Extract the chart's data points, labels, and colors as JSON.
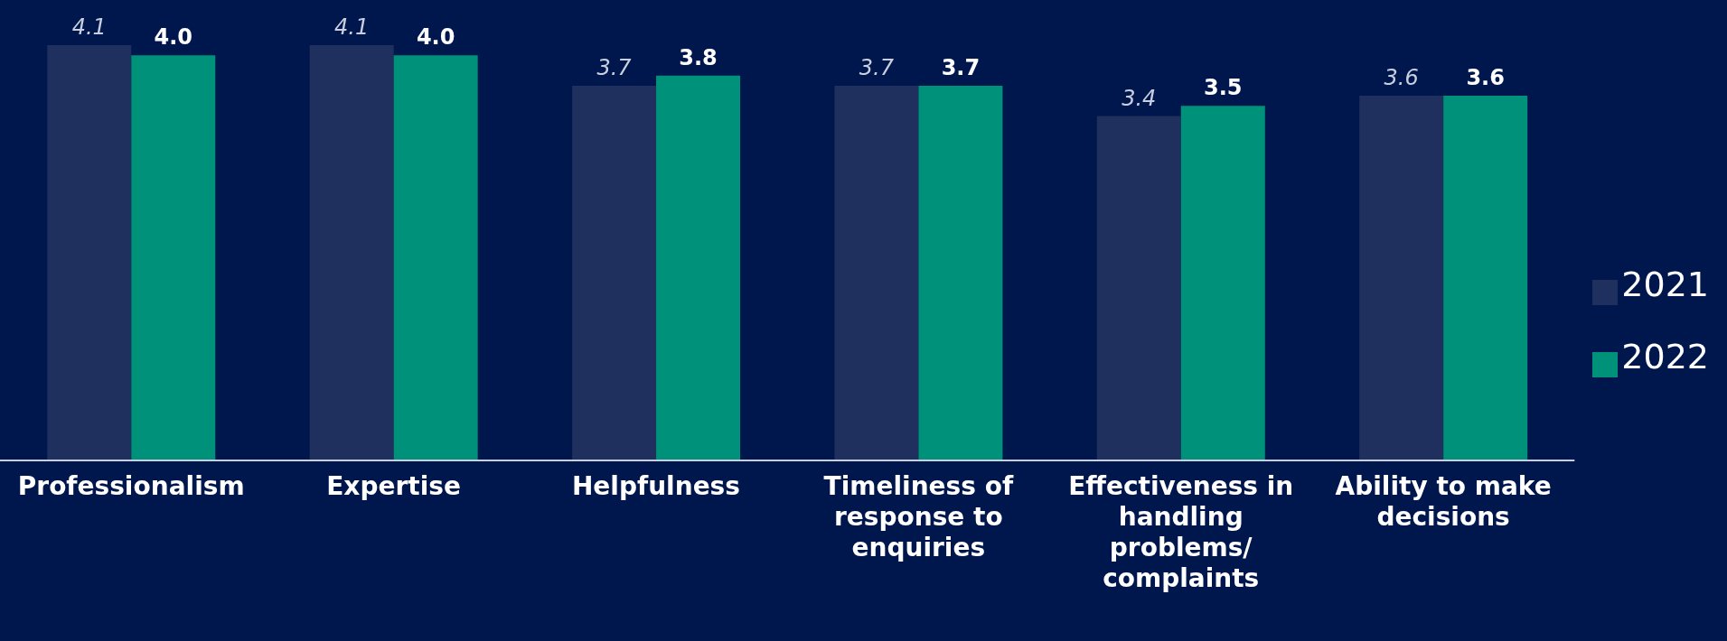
{
  "chart_data": {
    "type": "bar",
    "categories": [
      "Professionalism",
      "Expertise",
      "Helpfulness",
      "Timeliness of response to enquiries",
      "Effectiveness in handling problems/ complaints",
      "Ability to make decisions"
    ],
    "series": [
      {
        "name": "2021",
        "color": "#1f2f5e",
        "values": [
          4.1,
          4.1,
          3.7,
          3.7,
          3.4,
          3.6
        ],
        "value_labels": [
          "4.1",
          "4.1",
          "3.7",
          "3.7",
          "3.4",
          "3.6"
        ]
      },
      {
        "name": "2022",
        "color": "#00917a",
        "values": [
          4.0,
          4.0,
          3.8,
          3.7,
          3.5,
          3.6
        ],
        "value_labels": [
          "4.0",
          "4.0",
          "3.8",
          "3.7",
          "3.5",
          "3.6"
        ]
      }
    ],
    "legend": "right",
    "grid": false
  }
}
